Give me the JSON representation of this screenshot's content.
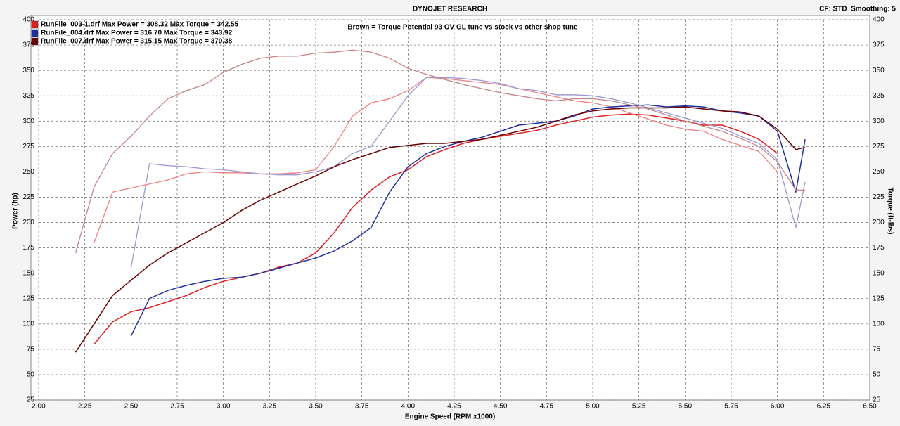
{
  "chart_data": {
    "type": "line",
    "title": "DYNOJET RESEARCH",
    "subtitle": "CF: STD  Smoothing: 5",
    "annotation": "Brown = Torque Potential 93 OV GL tune vs stock vs other shop tune",
    "x_label": "Engine Speed (RPM x1000)",
    "y_label": "Power (hp)",
    "y2_label": "Torque (ft-lbs)",
    "grid": true,
    "legend": "top-left",
    "x": [
      2.2,
      2.3,
      2.4,
      2.5,
      2.6,
      2.7,
      2.8,
      2.9,
      3.0,
      3.1,
      3.2,
      3.3,
      3.4,
      3.5,
      3.6,
      3.7,
      3.8,
      3.9,
      4.0,
      4.1,
      4.2,
      4.3,
      4.4,
      4.5,
      4.6,
      4.7,
      4.8,
      4.9,
      5.0,
      5.1,
      5.2,
      5.3,
      5.4,
      5.5,
      5.6,
      5.7,
      5.8,
      5.9,
      6.0,
      6.1,
      6.15
    ],
    "xlim": [
      2.0,
      6.5
    ],
    "xticks": [
      {
        "value": 2.0,
        "label": "2.00"
      },
      {
        "value": 2.25,
        "label": "2.25"
      },
      {
        "value": 2.5,
        "label": "2.50"
      },
      {
        "value": 2.75,
        "label": "2.75"
      },
      {
        "value": 3.0,
        "label": "3.00"
      },
      {
        "value": 3.25,
        "label": "3.25"
      },
      {
        "value": 3.5,
        "label": "3.50"
      },
      {
        "value": 3.75,
        "label": "3.75"
      },
      {
        "value": 4.0,
        "label": "4.00"
      },
      {
        "value": 4.25,
        "label": "4.25"
      },
      {
        "value": 4.5,
        "label": "4.50"
      },
      {
        "value": 4.75,
        "label": "4.75"
      },
      {
        "value": 5.0,
        "label": "5.00"
      },
      {
        "value": 5.25,
        "label": "5.25"
      },
      {
        "value": 5.5,
        "label": "5.50"
      },
      {
        "value": 5.75,
        "label": "5.75"
      },
      {
        "value": 6.0,
        "label": "6.00"
      },
      {
        "value": 6.25,
        "label": "6.25"
      },
      {
        "value": 6.5,
        "label": "6.50"
      }
    ],
    "ylim": [
      25,
      400
    ],
    "yticks": [
      25,
      50,
      75,
      100,
      125,
      150,
      175,
      200,
      225,
      250,
      275,
      300,
      325,
      350,
      375,
      400
    ],
    "y2lim": [
      25,
      400
    ],
    "y2ticks": [
      25,
      50,
      75,
      100,
      125,
      150,
      175,
      200,
      225,
      250,
      275,
      300,
      325,
      350,
      375,
      400
    ],
    "series": [
      {
        "name": "RunFile_003-1.drf Max Power = 308.32 Max Torque = 342.55",
        "color": "#e02020",
        "values": [
          null,
          80,
          102,
          112,
          116,
          122,
          128,
          136,
          142,
          146,
          150,
          156,
          160,
          170,
          190,
          215,
          232,
          245,
          252,
          265,
          272,
          278,
          282,
          285,
          288,
          291,
          296,
          300,
          304,
          306,
          307,
          306,
          303,
          300,
          296,
          296,
          290,
          282,
          268,
          null,
          null
        ]
      },
      {
        "color": "#f08080",
        "axis": "y2",
        "values": [
          null,
          180,
          230,
          234,
          238,
          242,
          248,
          250,
          249,
          249,
          248,
          248,
          249,
          252,
          275,
          305,
          318,
          322,
          330,
          343,
          342,
          340,
          338,
          336,
          332,
          328,
          324,
          320,
          318,
          314,
          308,
          302,
          296,
          292,
          290,
          282,
          276,
          270,
          250,
          null,
          null
        ]
      },
      {
        "name": "RunFile_004.drf Max Power = 316.70 Max Torque = 343.92",
        "color": "#2030a0",
        "values": [
          null,
          null,
          null,
          88,
          125,
          133,
          138,
          142,
          145,
          146,
          150,
          155,
          160,
          165,
          172,
          182,
          195,
          230,
          255,
          268,
          275,
          280,
          284,
          290,
          296,
          298,
          300,
          305,
          312,
          314,
          315,
          316,
          314,
          315,
          314,
          310,
          308,
          305,
          290,
          230,
          282
        ]
      },
      {
        "color": "#9a9ad4",
        "axis": "y2",
        "values": [
          null,
          null,
          null,
          155,
          258,
          256,
          255,
          253,
          252,
          250,
          248,
          247,
          247,
          250,
          255,
          268,
          275,
          300,
          325,
          343,
          343,
          342,
          340,
          337,
          332,
          330,
          326,
          326,
          325,
          322,
          318,
          313,
          308,
          303,
          298,
          293,
          285,
          278,
          262,
          195,
          240
        ]
      },
      {
        "name": "RunFile_007.drf Max Power = 315.15 Max Torque = 370.38",
        "color": "#6b0000",
        "values": [
          72,
          100,
          128,
          143,
          158,
          170,
          180,
          190,
          200,
          212,
          222,
          230,
          238,
          246,
          255,
          262,
          268,
          274,
          276,
          278,
          278,
          280,
          282,
          286,
          290,
          294,
          300,
          306,
          310,
          312,
          313,
          313,
          313,
          314,
          312,
          310,
          309,
          305,
          292,
          272,
          274
        ]
      },
      {
        "color": "#c48484",
        "axis": "y2",
        "values": [
          170,
          235,
          268,
          285,
          305,
          322,
          330,
          336,
          348,
          356,
          362,
          364,
          364,
          367,
          368,
          370,
          368,
          362,
          352,
          346,
          341,
          336,
          332,
          328,
          325,
          322,
          320,
          322,
          322,
          320,
          316,
          312,
          306,
          300,
          295,
          290,
          283,
          275,
          260,
          232,
          232
        ]
      }
    ]
  }
}
